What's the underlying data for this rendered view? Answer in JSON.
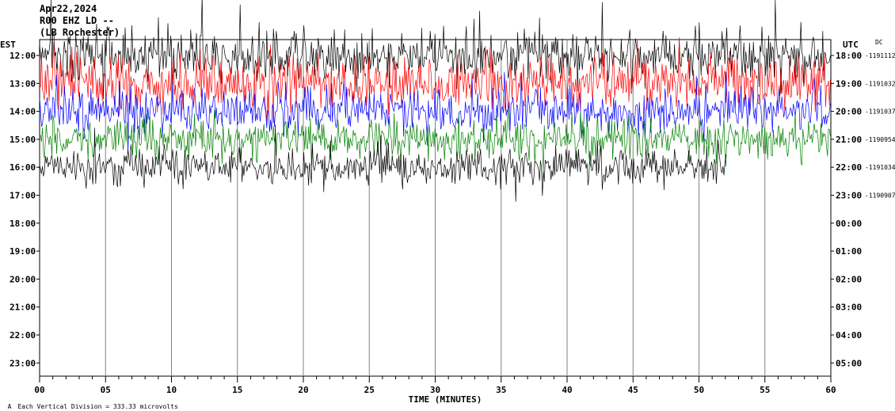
{
  "header": {
    "date": "Apr22,2024",
    "station": "R00 EHZ LD --",
    "location": "(LB Rochester)"
  },
  "footer": {
    "vertical_division": "Each Vertical Division = 333.33 microvolts"
  },
  "chart_data": {
    "type": "line",
    "title": "",
    "xlabel": "TIME (MINUTES)",
    "ylabel_left": "EST",
    "ylabel_right": "UTC",
    "dc_label": "DC",
    "xlim": [
      0,
      60
    ],
    "x_ticks": [
      "00",
      "05",
      "10",
      "15",
      "20",
      "25",
      "30",
      "35",
      "40",
      "45",
      "50",
      "55",
      "60"
    ],
    "rows": [
      {
        "est": "12:00",
        "utc": "18:00",
        "dc": "-1191112"
      },
      {
        "est": "13:00",
        "utc": "19:00",
        "dc": "-1191032"
      },
      {
        "est": "14:00",
        "utc": "20:00",
        "dc": "-1191037"
      },
      {
        "est": "15:00",
        "utc": "21:00",
        "dc": "-1190954"
      },
      {
        "est": "16:00",
        "utc": "22:00",
        "dc": "-1191034"
      },
      {
        "est": "17:00",
        "utc": "23:00",
        "dc": "-1190907"
      },
      {
        "est": "18:00",
        "utc": "00:00",
        "dc": ""
      },
      {
        "est": "19:00",
        "utc": "01:00",
        "dc": ""
      },
      {
        "est": "20:00",
        "utc": "02:00",
        "dc": ""
      },
      {
        "est": "21:00",
        "utc": "03:00",
        "dc": ""
      },
      {
        "est": "22:00",
        "utc": "04:00",
        "dc": ""
      },
      {
        "est": "23:00",
        "utc": "05:00",
        "dc": ""
      }
    ],
    "trace_colors": [
      "#000000",
      "#ff0000",
      "#0000ff",
      "#008000"
    ],
    "last_row_end_minute": 52.1,
    "grid": "vertical minute lines",
    "annotation": "A"
  }
}
